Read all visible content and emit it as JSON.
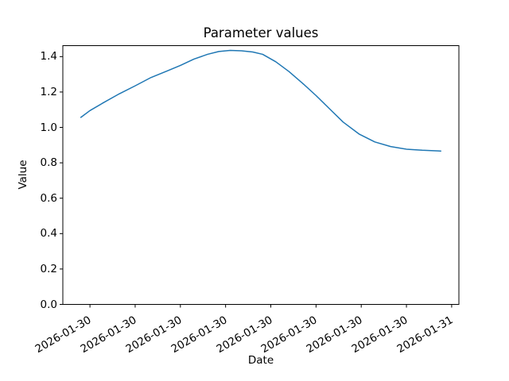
{
  "chart_data": {
    "type": "line",
    "title": "Parameter values",
    "xlabel": "Date",
    "ylabel": "Value",
    "grid": false,
    "legend": null,
    "x_tick_labels": [
      "2026-01-30",
      "2026-01-30",
      "2026-01-30",
      "2026-01-30",
      "2026-01-30",
      "2026-01-30",
      "2026-01-30",
      "2026-01-30",
      "2026-01-31"
    ],
    "y_ticks": [
      0.0,
      0.2,
      0.4,
      0.6,
      0.8,
      1.0,
      1.2,
      1.4
    ],
    "y_tick_labels": [
      "0.0",
      "0.2",
      "0.4",
      "0.6",
      "0.8",
      "1.0",
      "1.2",
      "1.4"
    ],
    "xlim": [
      -0.6,
      8.16
    ],
    "ylim": [
      0,
      1.462
    ],
    "axis_color": "#000000",
    "series": [
      {
        "color": "#1f77b4",
        "points": [
          [
            -0.21,
            1.055
          ],
          [
            0.0,
            1.095
          ],
          [
            0.3,
            1.14
          ],
          [
            0.65,
            1.19
          ],
          [
            1.0,
            1.235
          ],
          [
            1.35,
            1.282
          ],
          [
            1.7,
            1.318
          ],
          [
            2.0,
            1.35
          ],
          [
            2.3,
            1.386
          ],
          [
            2.6,
            1.413
          ],
          [
            2.85,
            1.429
          ],
          [
            3.1,
            1.435
          ],
          [
            3.35,
            1.433
          ],
          [
            3.6,
            1.426
          ],
          [
            3.82,
            1.413
          ],
          [
            4.11,
            1.371
          ],
          [
            4.4,
            1.316
          ],
          [
            4.7,
            1.25
          ],
          [
            5.0,
            1.18
          ],
          [
            5.3,
            1.105
          ],
          [
            5.6,
            1.03
          ],
          [
            5.95,
            0.963
          ],
          [
            6.3,
            0.918
          ],
          [
            6.65,
            0.892
          ],
          [
            7.0,
            0.877
          ],
          [
            7.35,
            0.871
          ],
          [
            7.7,
            0.867
          ],
          [
            7.77,
            0.866
          ]
        ]
      }
    ]
  }
}
